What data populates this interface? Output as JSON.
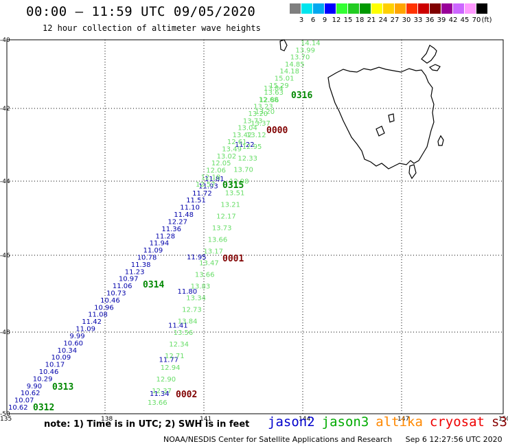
{
  "title": "00:00 – 11:59 UTC 09/05/2020",
  "subtitle": "12 hour collection of altimeter wave heights",
  "scale": {
    "unit_label": "(ft)",
    "ticks": [
      "3",
      "6",
      "9",
      "12",
      "15",
      "18",
      "21",
      "24",
      "27",
      "30",
      "33",
      "36",
      "39",
      "42",
      "45",
      "70"
    ],
    "colors": [
      "#7f7f7f",
      "#00e5ee",
      "#00a8f0",
      "#0000ff",
      "#33ff33",
      "#22cc22",
      "#009900",
      "#ffff00",
      "#ffd000",
      "#ffa500",
      "#ff3300",
      "#cc0000",
      "#800000",
      "#990099",
      "#cc66ff",
      "#ff99ff",
      "#000000"
    ]
  },
  "axes": {
    "lon_ticks": [
      "135",
      "138",
      "141",
      "144",
      "147",
      "150"
    ],
    "lat_ticks": [
      "-40",
      "-42",
      "-44",
      "-46",
      "-48",
      "-50"
    ]
  },
  "colors": {
    "jason2": "#0000aa",
    "jason3": "#008800",
    "light": "#66dd66",
    "altika": "#ff8800",
    "cryosat": "#cc0000",
    "s3a": "#800000"
  },
  "tracks": {
    "blue_far": {
      "values": [
        "10.62",
        "10.07",
        "10.62",
        "9.90",
        "10.29",
        "10.46",
        "10.17",
        "10.09",
        "10.34",
        "10.60",
        "9.99",
        "11.09",
        "11.42",
        "11.08",
        "10.96",
        "10.46",
        "10.73",
        "11.06",
        "10.97",
        "11.23",
        "11.38",
        "10.78",
        "11.09",
        "11.94",
        "11.28",
        "11.36",
        "12.27",
        "11.48",
        "11.10",
        "11.51",
        "11.72",
        "11.93",
        "11.81"
      ]
    },
    "blue_near": {
      "values": [
        "11.34",
        "11.77",
        "11.41",
        "11.80",
        "11.95"
      ]
    },
    "blue_upper": {
      "values": [
        "11.22"
      ]
    },
    "green_far": {
      "values": [
        "12.57",
        "12.18",
        "12.06",
        "12.05",
        "13.02",
        "13.49",
        "12.61",
        "13.42",
        "13.04",
        "13.73",
        "13.20",
        "13.23",
        "12.68",
        "13.63",
        "15.29",
        "15.01",
        "14.18",
        "14.85",
        "13.70",
        "13.99",
        "14.14"
      ]
    },
    "green_near": {
      "values": [
        "13.66",
        "12.37",
        "12.90",
        "12.94",
        "12.71",
        "12.34",
        "13.56",
        "13.84",
        "12.73",
        "13.34",
        "13.83",
        "13.66",
        "13.47",
        "13.17",
        "13.66",
        "13.73",
        "12.17",
        "13.21",
        "13.51",
        "12.98",
        "13.70",
        "12.33",
        "12.95",
        "13.12",
        "13.37",
        "13.20",
        "12.86",
        "13.84"
      ]
    }
  },
  "pass_labels": [
    {
      "text": "0312",
      "sat": "jason3"
    },
    {
      "text": "0313",
      "sat": "jason3"
    },
    {
      "text": "0314",
      "sat": "jason3"
    },
    {
      "text": "0315",
      "sat": "jason3"
    },
    {
      "text": "0316",
      "sat": "jason3"
    },
    {
      "text": "0000",
      "sat": "s3a"
    },
    {
      "text": "0001",
      "sat": "s3a"
    },
    {
      "text": "0002",
      "sat": "s3a"
    }
  ],
  "note": "note: 1) Time is in UTC; 2) SWH is in feet",
  "legend": [
    {
      "name": "jason2",
      "color": "#0000cc"
    },
    {
      "name": "jason3",
      "color": "#00aa00"
    },
    {
      "name": "altika",
      "color": "#ff8800"
    },
    {
      "name": "cryosat",
      "color": "#ee0000"
    },
    {
      "name": "s3a",
      "color": "#880000"
    }
  ],
  "footer": {
    "agency": "NOAA/NESDIS Center for Satellite Applications and Research",
    "timestamp": "Sep  6 12:27:56 UTC 2020"
  }
}
